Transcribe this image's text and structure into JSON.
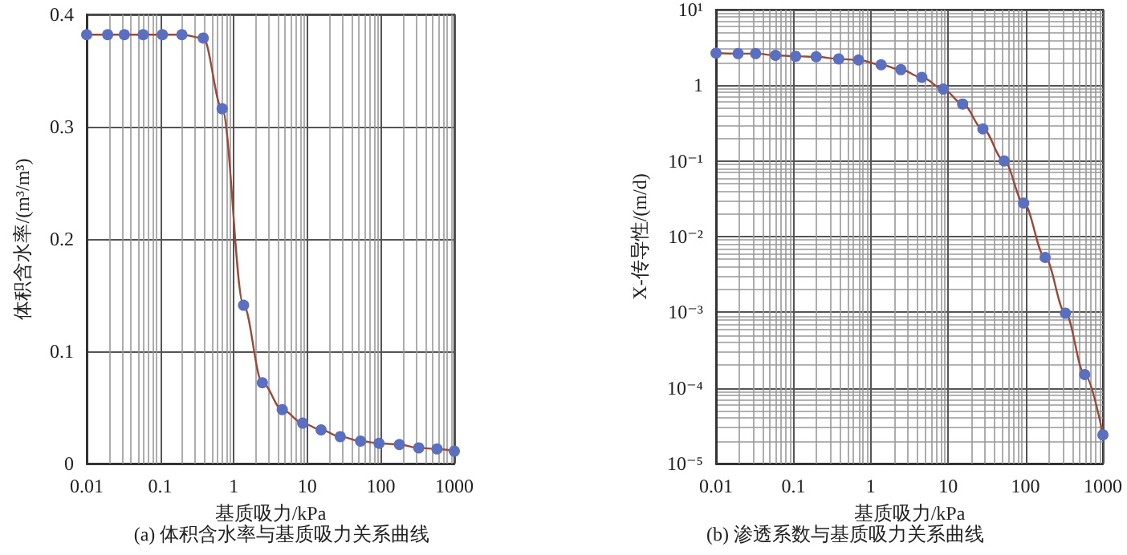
{
  "chart_data": [
    {
      "type": "line",
      "title": "(a) 体积含水率与基质吸力关系曲线",
      "xlabel": "基质吸力/kPa",
      "ylabel": "体积含水率/(m³/m³)",
      "log": "x",
      "grid": true,
      "x": [
        0.01,
        0.0193,
        0.0325,
        0.0586,
        0.107,
        0.197,
        0.385,
        0.695,
        1.36,
        2.45,
        4.57,
        8.65,
        15.4,
        28.1,
        53,
        94.6,
        179,
        328,
        582,
        1000
      ],
      "xlim": [
        0.01,
        1000
      ],
      "xticks": [
        0.01,
        0.1,
        1,
        10,
        100,
        1000
      ],
      "ylim": [
        0,
        0.4
      ],
      "yticks": [
        0,
        0.1,
        0.2,
        0.3,
        0.4
      ],
      "series": [
        {
          "type": "line",
          "color": "#9b4a3a",
          "marker": "none",
          "values": [
            0.382,
            0.382,
            0.382,
            0.382,
            0.382,
            0.382,
            0.379,
            0.316,
            0.141,
            0.072,
            0.048,
            0.036,
            0.03,
            0.024,
            0.02,
            0.018,
            0.017,
            0.014,
            0.013,
            0.011
          ]
        },
        {
          "type": "scatter",
          "color": "#5b6fc0",
          "marker": "circle",
          "values": [
            0.382,
            0.382,
            0.382,
            0.382,
            0.382,
            0.382,
            0.379,
            0.316,
            0.141,
            0.072,
            0.048,
            0.036,
            0.03,
            0.024,
            0.02,
            0.018,
            0.017,
            0.014,
            0.013,
            0.011
          ]
        }
      ]
    },
    {
      "type": "line",
      "title": "(b) 渗透系数与基质吸力关系曲线",
      "xlabel": "基质吸力/kPa",
      "ylabel": "X-传导性/(m/d)",
      "log": "xy",
      "grid": true,
      "x": [
        0.01,
        0.0193,
        0.0325,
        0.0586,
        0.107,
        0.197,
        0.385,
        0.695,
        1.36,
        2.45,
        4.57,
        8.65,
        15.4,
        28.1,
        53,
        94.6,
        179,
        328,
        582,
        1000
      ],
      "xlim": [
        0.01,
        1000
      ],
      "xticks": [
        0.01,
        0.1,
        1,
        10,
        100,
        1000
      ],
      "ylim": [
        1e-05,
        10
      ],
      "yticks": [
        {
          "value": 1e-05,
          "label": "10⁻⁵"
        },
        {
          "value": 0.0001,
          "label": "10⁻⁴"
        },
        {
          "value": 0.001,
          "label": "10⁻³"
        },
        {
          "value": 0.01,
          "label": "10⁻²"
        },
        {
          "value": 0.1,
          "label": "10⁻¹"
        },
        {
          "value": 1,
          "label": "1"
        },
        {
          "value": 10,
          "label": "10¹"
        }
      ],
      "series": [
        {
          "type": "line",
          "color": "#9b4a3a",
          "marker": "none",
          "values": [
            2.66,
            2.62,
            2.62,
            2.49,
            2.42,
            2.38,
            2.23,
            2.16,
            1.87,
            1.61,
            1.27,
            0.89,
            0.566,
            0.265,
            0.1,
            0.0277,
            0.0053,
            0.00097,
            0.00015,
            2.4e-05
          ]
        },
        {
          "type": "scatter",
          "color": "#5b6fc0",
          "marker": "circle",
          "values": [
            2.66,
            2.62,
            2.62,
            2.49,
            2.42,
            2.38,
            2.23,
            2.16,
            1.87,
            1.61,
            1.27,
            0.89,
            0.566,
            0.265,
            0.1,
            0.0277,
            0.0053,
            0.00097,
            0.00015,
            2.4e-05
          ]
        }
      ]
    }
  ]
}
